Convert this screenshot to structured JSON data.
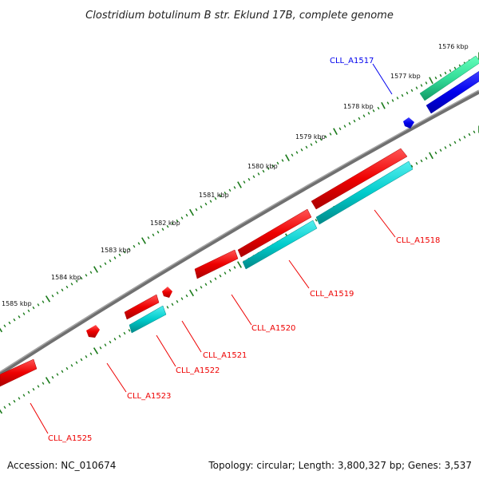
{
  "title": "Clostridium botulinum B str. Eklund 17B, complete genome",
  "footer": {
    "accession": "Accession: NC_010674",
    "summary": "Topology: circular; Length: 3,800,327 bp; Genes: 3,537"
  },
  "axis": {
    "ticks": [
      "1576 kbp",
      "1577 kbp",
      "1578 kbp",
      "1579 kbp",
      "1580 kbp",
      "1581 kbp",
      "1582 kbp",
      "1583 kbp",
      "1584 kbp",
      "1585 kbp"
    ]
  },
  "genes": [
    {
      "id": "CLL_A1517",
      "color": "#0000ee"
    },
    {
      "id": "CLL_A1518",
      "color": "#ee0000"
    },
    {
      "id": "CLL_A1519",
      "color": "#ee0000"
    },
    {
      "id": "CLL_A1520",
      "color": "#ee0000"
    },
    {
      "id": "CLL_A1521",
      "color": "#ee0000"
    },
    {
      "id": "CLL_A1522",
      "color": "#ee0000"
    },
    {
      "id": "CLL_A1523",
      "color": "#ee0000"
    },
    {
      "id": "CLL_A1525",
      "color": "#ee0000"
    }
  ],
  "colors": {
    "backbone": "#808080",
    "tick": "#1a7a1a",
    "forward_gene": "#ee0000",
    "cds_cyan": "#00cccc",
    "cds_green": "#33dd99",
    "blue_gene": "#0000ee"
  }
}
